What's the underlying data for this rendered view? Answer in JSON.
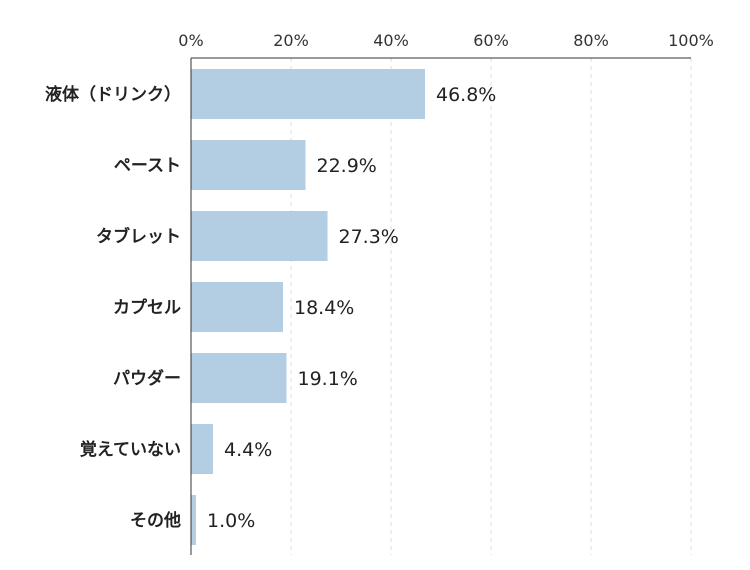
{
  "chart_data": {
    "type": "bar",
    "orientation": "horizontal",
    "categories": [
      "液体（ドリンク）",
      "ペースト",
      "タブレット",
      "カプセル",
      "パウダー",
      "覚えていない",
      "その他"
    ],
    "values": [
      46.8,
      22.9,
      27.3,
      18.4,
      19.1,
      4.4,
      1.0
    ],
    "value_labels": [
      "46.8%",
      "22.9%",
      "27.3%",
      "18.4%",
      "19.1%",
      "4.4%",
      "1.0%"
    ],
    "xlim": [
      0,
      100
    ],
    "x_ticks": [
      0,
      20,
      40,
      60,
      80,
      100
    ],
    "x_tick_labels": [
      "0%",
      "20%",
      "40%",
      "60%",
      "80%",
      "100%"
    ],
    "x_axis_position": "top",
    "grid": "vertical dashed",
    "bar_color": "#b3cde3"
  }
}
